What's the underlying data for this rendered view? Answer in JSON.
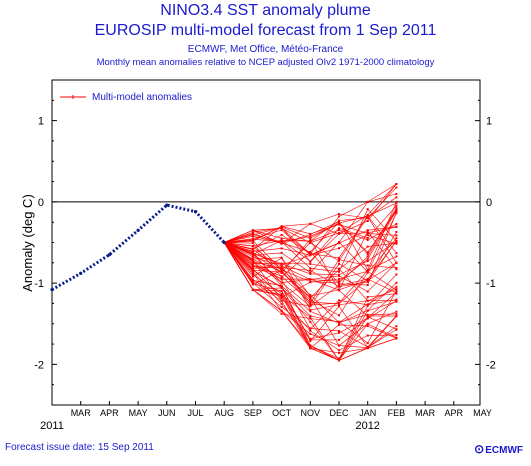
{
  "header": {
    "title": "NINO3.4 SST anomaly plume",
    "subtitle": "EUROSIP multi-model forecast from 1 Sep 2011",
    "agencies": "ECMWF, Met Office, Météo-France",
    "description": "Monthly mean anomalies relative to NCEP adjusted OIv2 1971-2000 climatology"
  },
  "footer": {
    "issue_date": "Forecast issue date: 15 Sep 2011",
    "logo_text": "ECMWF",
    "logo_icon": "ecmwf-logo-icon"
  },
  "colors": {
    "text": "#1a1ad0",
    "observed": "#0b1e8a",
    "forecast": "#ff0000",
    "axis": "#000000"
  },
  "chart_data": {
    "type": "line",
    "ylabel": "Anomaly (deg C)",
    "ylim": [
      -2.5,
      1.5
    ],
    "yticks": [
      1,
      0,
      -1,
      -2
    ],
    "zero_line": true,
    "month_labels": [
      "MAR",
      "APR",
      "MAY",
      "JUN",
      "JUL",
      "AUG",
      "SEP",
      "OCT",
      "NOV",
      "DEC",
      "JAN",
      "FEB",
      "MAR",
      "APR",
      "MAY"
    ],
    "year_labels": [
      {
        "text": "2011",
        "month": "FEB"
      },
      {
        "text": "2012",
        "month": "JAN"
      }
    ],
    "legend": {
      "label": "Multi-model anomalies",
      "position": "top-left"
    },
    "observed": {
      "x": [
        "2011-02",
        "2011-03",
        "2011-04",
        "2011-05",
        "2011-06",
        "2011-07",
        "2011-08"
      ],
      "y": [
        -1.08,
        -0.88,
        -0.65,
        -0.35,
        -0.04,
        -0.12,
        -0.5
      ]
    },
    "forecast": {
      "x": [
        "2011-08",
        "2011-09",
        "2011-10",
        "2011-11",
        "2011-12",
        "2012-01",
        "2012-02"
      ],
      "start": -0.5,
      "members": 60,
      "month_ranges": [
        {
          "month": "2011-09",
          "min": -1.08,
          "max": -0.35
        },
        {
          "month": "2011-10",
          "min": -1.38,
          "max": -0.3
        },
        {
          "month": "2011-11",
          "min": -1.8,
          "max": -0.27
        },
        {
          "month": "2011-12",
          "min": -1.95,
          "max": -0.15
        },
        {
          "month": "2012-01",
          "min": -1.8,
          "max": 0.0
        },
        {
          "month": "2012-02",
          "min": -1.68,
          "max": 0.22
        }
      ]
    }
  }
}
